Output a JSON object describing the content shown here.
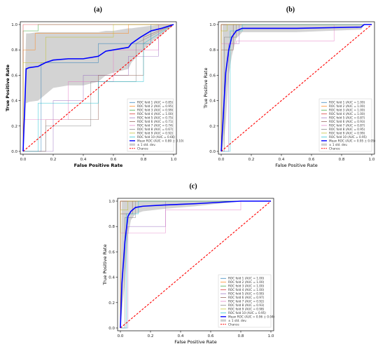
{
  "chart_data": [
    {
      "panel_label": "(a)",
      "type": "line",
      "title": "",
      "xlabel": "False Positive Rate",
      "ylabel": "True Positive Rate",
      "label_bold": true,
      "xlim": [
        0,
        1
      ],
      "ylim": [
        0,
        1
      ],
      "xticks": [
        "0.0",
        "0.2",
        "0.4",
        "0.6",
        "0.8",
        "1.0"
      ],
      "yticks": [
        "0.0",
        "0.2",
        "0.4",
        "0.6",
        "0.8",
        "1.0"
      ],
      "legend_position": "lower-right",
      "series": [
        {
          "name": "ROC fold 1 (AUC = 0.85)",
          "color": "#1f77b4",
          "x": [
            0,
            0.12,
            0.12,
            0.5,
            0.5,
            0.85,
            0.85,
            1
          ],
          "y": [
            0,
            0,
            0.7,
            0.7,
            0.85,
            0.85,
            1,
            1
          ]
        },
        {
          "name": "ROC fold 2 (AUC = 0.95)",
          "color": "#ff7f0e",
          "x": [
            0,
            0,
            0.08,
            0.08,
            0.7,
            0.7,
            1
          ],
          "y": [
            0,
            0.8,
            0.8,
            0.93,
            0.93,
            1,
            1
          ]
        },
        {
          "name": "ROC fold 3 (AUC = 0.99)",
          "color": "#2ca02c",
          "x": [
            0,
            0,
            0.1,
            0.1,
            1
          ],
          "y": [
            0,
            0.95,
            0.95,
            1,
            1
          ]
        },
        {
          "name": "ROC fold 4 (AUC = 1.00)",
          "color": "#d62728",
          "x": [
            0,
            0,
            1
          ],
          "y": [
            0,
            1,
            1
          ]
        },
        {
          "name": "ROC fold 5 (AUC = 0.75)",
          "color": "#9467bd",
          "x": [
            0,
            0.2,
            0.2,
            0.4,
            0.4,
            0.7,
            0.7,
            0.9,
            0.9,
            1
          ],
          "y": [
            0,
            0,
            0.4,
            0.4,
            0.6,
            0.6,
            0.75,
            0.75,
            1,
            1
          ]
        },
        {
          "name": "ROC fold 6 (AUC = 0.71)",
          "color": "#8c564b",
          "x": [
            0,
            0.15,
            0.15,
            0.5,
            0.5,
            0.8,
            0.8,
            1
          ],
          "y": [
            0,
            0,
            0.25,
            0.25,
            0.6,
            0.6,
            0.9,
            1
          ]
        },
        {
          "name": "ROC fold 7 (AUC = 0.74)",
          "color": "#e377c2",
          "x": [
            0,
            0,
            0.3,
            0.3,
            0.6,
            0.6,
            0.9,
            0.9,
            1
          ],
          "y": [
            0,
            0.25,
            0.25,
            0.55,
            0.55,
            0.8,
            0.8,
            1,
            1
          ]
        },
        {
          "name": "ROC fold 8 (AUC = 0.67)",
          "color": "#7f7f7f",
          "x": [
            0,
            0.15,
            0.15,
            0.45,
            0.45,
            0.75,
            0.75,
            1
          ],
          "y": [
            0,
            0,
            0.2,
            0.2,
            0.55,
            0.55,
            0.85,
            1
          ]
        },
        {
          "name": "ROC fold 9 (AUC = 0.92)",
          "color": "#bcbd22",
          "x": [
            0,
            0,
            0.15,
            0.15,
            0.6,
            0.6,
            1
          ],
          "y": [
            0,
            0.7,
            0.7,
            0.9,
            0.9,
            1,
            1
          ]
        },
        {
          "name": "ROC fold 10 (AUC = 0.66)",
          "color": "#17becf",
          "x": [
            0,
            0.1,
            0.1,
            0.5,
            0.5,
            0.8,
            0.8,
            1
          ],
          "y": [
            0,
            0,
            0.38,
            0.38,
            0.55,
            0.55,
            0.85,
            1
          ]
        },
        {
          "name": "Mean ROC (AUC = 0.80 ± 0.10)",
          "color": "#0000ff",
          "mean": true,
          "x": [
            0,
            0.02,
            0.04,
            0.1,
            0.15,
            0.2,
            0.3,
            0.4,
            0.5,
            0.55,
            0.6,
            0.7,
            0.72,
            0.78,
            0.85,
            0.92,
            1.0
          ],
          "y": [
            0,
            0.65,
            0.66,
            0.67,
            0.7,
            0.72,
            0.73,
            0.73,
            0.75,
            0.79,
            0.8,
            0.82,
            0.85,
            0.9,
            0.95,
            0.97,
            1.0
          ]
        }
      ],
      "band": {
        "name": "± 1 std. dev.",
        "x": [
          0,
          0.02,
          0.04,
          0.1,
          0.15,
          0.2,
          0.3,
          0.4,
          0.5,
          0.55,
          0.6,
          0.7,
          0.72,
          0.78,
          0.85,
          0.92,
          1.0
        ],
        "upper": [
          0.05,
          0.93,
          0.93,
          0.94,
          0.94,
          0.94,
          0.94,
          0.94,
          0.94,
          0.95,
          0.95,
          0.97,
          0.97,
          0.98,
          0.99,
          1,
          1
        ],
        "lower": [
          0,
          0.38,
          0.39,
          0.4,
          0.45,
          0.5,
          0.52,
          0.52,
          0.55,
          0.6,
          0.62,
          0.65,
          0.7,
          0.78,
          0.86,
          0.92,
          1
        ]
      },
      "chance": {
        "name": "Chance",
        "color": "#ff0000"
      }
    },
    {
      "panel_label": "(b)",
      "type": "line",
      "title": "",
      "xlabel": "False Positive Rate",
      "ylabel": "True Positive Rate",
      "label_bold": false,
      "xlim": [
        0,
        1
      ],
      "ylim": [
        0,
        1
      ],
      "xticks": [
        "0.0",
        "0.2",
        "0.4",
        "0.6",
        "0.8",
        "1.0"
      ],
      "yticks": [
        "0.0",
        "0.2",
        "0.4",
        "0.6",
        "0.8",
        "1.0"
      ],
      "legend_position": "lower-right",
      "series": [
        {
          "name": "ROC fold 1 (AUC = 1.00)",
          "color": "#1f77b4",
          "x": [
            0,
            0,
            1
          ],
          "y": [
            0,
            1,
            1
          ]
        },
        {
          "name": "ROC fold 2 (AUC = 1.00)",
          "color": "#ff7f0e",
          "x": [
            0,
            0,
            1
          ],
          "y": [
            0,
            1,
            1
          ]
        },
        {
          "name": "ROC fold 3 (AUC = 1.00)",
          "color": "#2ca02c",
          "x": [
            0,
            0,
            1
          ],
          "y": [
            0,
            1,
            1
          ]
        },
        {
          "name": "ROC fold 4 (AUC = 1.00)",
          "color": "#d62728",
          "x": [
            0,
            0,
            1
          ],
          "y": [
            0,
            1,
            1
          ]
        },
        {
          "name": "ROC fold 5 (AUC = 0.87)",
          "color": "#9467bd",
          "x": [
            0,
            0.05,
            0.05,
            0.12,
            0.12,
            1
          ],
          "y": [
            0,
            0,
            0.85,
            0.85,
            1,
            1
          ]
        },
        {
          "name": "ROC fold 6 (AUC = 0.93)",
          "color": "#8c564b",
          "x": [
            0,
            0,
            0.08,
            0.08,
            1
          ],
          "y": [
            0,
            0.8,
            0.8,
            1,
            1
          ]
        },
        {
          "name": "ROC fold 7 (AUC = 0.87)",
          "color": "#e377c2",
          "x": [
            0,
            0,
            0.1,
            0.1,
            0.75,
            0.75,
            1
          ],
          "y": [
            0,
            0.85,
            0.85,
            0.87,
            0.87,
            1,
            1
          ]
        },
        {
          "name": "ROC fold 8 (AUC = 0.95)",
          "color": "#7f7f7f",
          "x": [
            0,
            0.02,
            0.02,
            0.1,
            0.1,
            1
          ],
          "y": [
            0,
            0,
            0.9,
            0.9,
            1,
            1
          ]
        },
        {
          "name": "ROC fold 9 (AUC = 0.99)",
          "color": "#bcbd22",
          "x": [
            0,
            0,
            0.04,
            0.04,
            1
          ],
          "y": [
            0,
            0.95,
            0.95,
            1,
            1
          ]
        },
        {
          "name": "ROC fold 10 (AUC = 0.95)",
          "color": "#17becf",
          "x": [
            0,
            0.06,
            0.06,
            0.14,
            0.14,
            1
          ],
          "y": [
            0,
            0,
            0.95,
            0.95,
            1,
            1
          ]
        },
        {
          "name": "Mean ROC (AUC = 0.95 ± 0.05)",
          "color": "#0000ff",
          "mean": true,
          "x": [
            0,
            0.01,
            0.03,
            0.05,
            0.07,
            0.1,
            0.14,
            0.5,
            0.93,
            0.95,
            1.0
          ],
          "y": [
            0,
            0.2,
            0.62,
            0.8,
            0.9,
            0.95,
            0.97,
            0.97,
            0.98,
            1.0,
            1.0
          ]
        }
      ],
      "band": {
        "name": "± 1 std. dev.",
        "x": [
          0,
          0.01,
          0.03,
          0.05,
          0.07,
          0.1,
          0.14,
          0.5,
          0.93,
          0.95,
          1.0
        ],
        "upper": [
          0.1,
          1,
          1,
          1,
          1,
          1,
          1,
          1,
          1,
          1,
          1
        ],
        "lower": [
          0,
          0,
          0.22,
          0.6,
          0.75,
          0.89,
          0.94,
          0.94,
          0.96,
          1,
          1
        ]
      },
      "chance": {
        "name": "Chance",
        "color": "#ff0000"
      }
    },
    {
      "panel_label": "(c)",
      "type": "line",
      "title": "",
      "xlabel": "False Positive Rate",
      "ylabel": "True Positive Rate",
      "label_bold": false,
      "xlim": [
        0,
        1
      ],
      "ylim": [
        0,
        1
      ],
      "xticks": [
        "0.0",
        "0.2",
        "0.4",
        "0.6",
        "0.8",
        "1.0"
      ],
      "yticks": [
        "0.0",
        "0.2",
        "0.4",
        "0.6",
        "0.8",
        "1.0"
      ],
      "legend_position": "lower-right",
      "series": [
        {
          "name": "ROC fold 1 (AUC = 1.00)",
          "color": "#1f77b4",
          "x": [
            0,
            0,
            1
          ],
          "y": [
            0,
            1,
            1
          ]
        },
        {
          "name": "ROC fold 2 (AUC = 1.00)",
          "color": "#ff7f0e",
          "x": [
            0,
            0,
            1
          ],
          "y": [
            0,
            1,
            1
          ]
        },
        {
          "name": "ROC fold 3 (AUC = 1.00)",
          "color": "#2ca02c",
          "x": [
            0,
            0,
            1
          ],
          "y": [
            0,
            1,
            1
          ]
        },
        {
          "name": "ROC fold 4 (AUC = 1.00)",
          "color": "#d62728",
          "x": [
            0,
            0,
            1
          ],
          "y": [
            0,
            1,
            1
          ]
        },
        {
          "name": "ROC fold 5 (AUC = 0.90)",
          "color": "#9467bd",
          "x": [
            0,
            0.05,
            0.05,
            0.3,
            0.3,
            1
          ],
          "y": [
            0,
            0,
            0.8,
            0.8,
            1,
            1
          ]
        },
        {
          "name": "ROC fold 6 (AUC = 0.97)",
          "color": "#8c564b",
          "x": [
            0,
            0,
            0.08,
            0.08,
            1
          ],
          "y": [
            0,
            0.9,
            0.9,
            1,
            1
          ]
        },
        {
          "name": "ROC fold 7 (AUC = 0.92)",
          "color": "#e377c2",
          "x": [
            0,
            0,
            0.3,
            0.3,
            0.8,
            0.8,
            1
          ],
          "y": [
            0,
            0.75,
            0.75,
            0.93,
            0.93,
            1,
            1
          ]
        },
        {
          "name": "ROC fold 8 (AUC = 0.93)",
          "color": "#7f7f7f",
          "x": [
            0,
            0.03,
            0.03,
            0.1,
            0.1,
            1
          ],
          "y": [
            0,
            0,
            0.87,
            0.87,
            1,
            1
          ]
        },
        {
          "name": "ROC fold 9 (AUC = 0.98)",
          "color": "#bcbd22",
          "x": [
            0,
            0,
            0.05,
            0.05,
            1
          ],
          "y": [
            0,
            0.93,
            0.93,
            1,
            1
          ]
        },
        {
          "name": "ROC fold 10 (AUC = 0.95)",
          "color": "#17becf",
          "x": [
            0,
            0.04,
            0.04,
            0.12,
            0.12,
            1
          ],
          "y": [
            0,
            0,
            0.9,
            0.9,
            1,
            1
          ]
        },
        {
          "name": "Mean ROC (AUC = 0.96 ± 0.04)",
          "color": "#0000ff",
          "mean": true,
          "x": [
            0,
            0.01,
            0.03,
            0.05,
            0.07,
            0.1,
            0.15,
            0.3,
            0.5,
            0.8,
            1.0
          ],
          "y": [
            0,
            0.35,
            0.68,
            0.88,
            0.92,
            0.95,
            0.96,
            0.97,
            0.98,
            1.0,
            1.0
          ]
        }
      ],
      "band": {
        "name": "± 1 std. dev.",
        "x": [
          0,
          0.01,
          0.03,
          0.05,
          0.07,
          0.1,
          0.15,
          0.3,
          0.5,
          0.8,
          1.0
        ],
        "upper": [
          0.1,
          1,
          1,
          1,
          1,
          1,
          1,
          1,
          1,
          1,
          1
        ],
        "lower": [
          0,
          0.13,
          0.35,
          0.73,
          0.85,
          0.9,
          0.92,
          0.94,
          0.96,
          1,
          1
        ]
      },
      "chance": {
        "name": "Chance",
        "color": "#ff0000"
      }
    }
  ]
}
